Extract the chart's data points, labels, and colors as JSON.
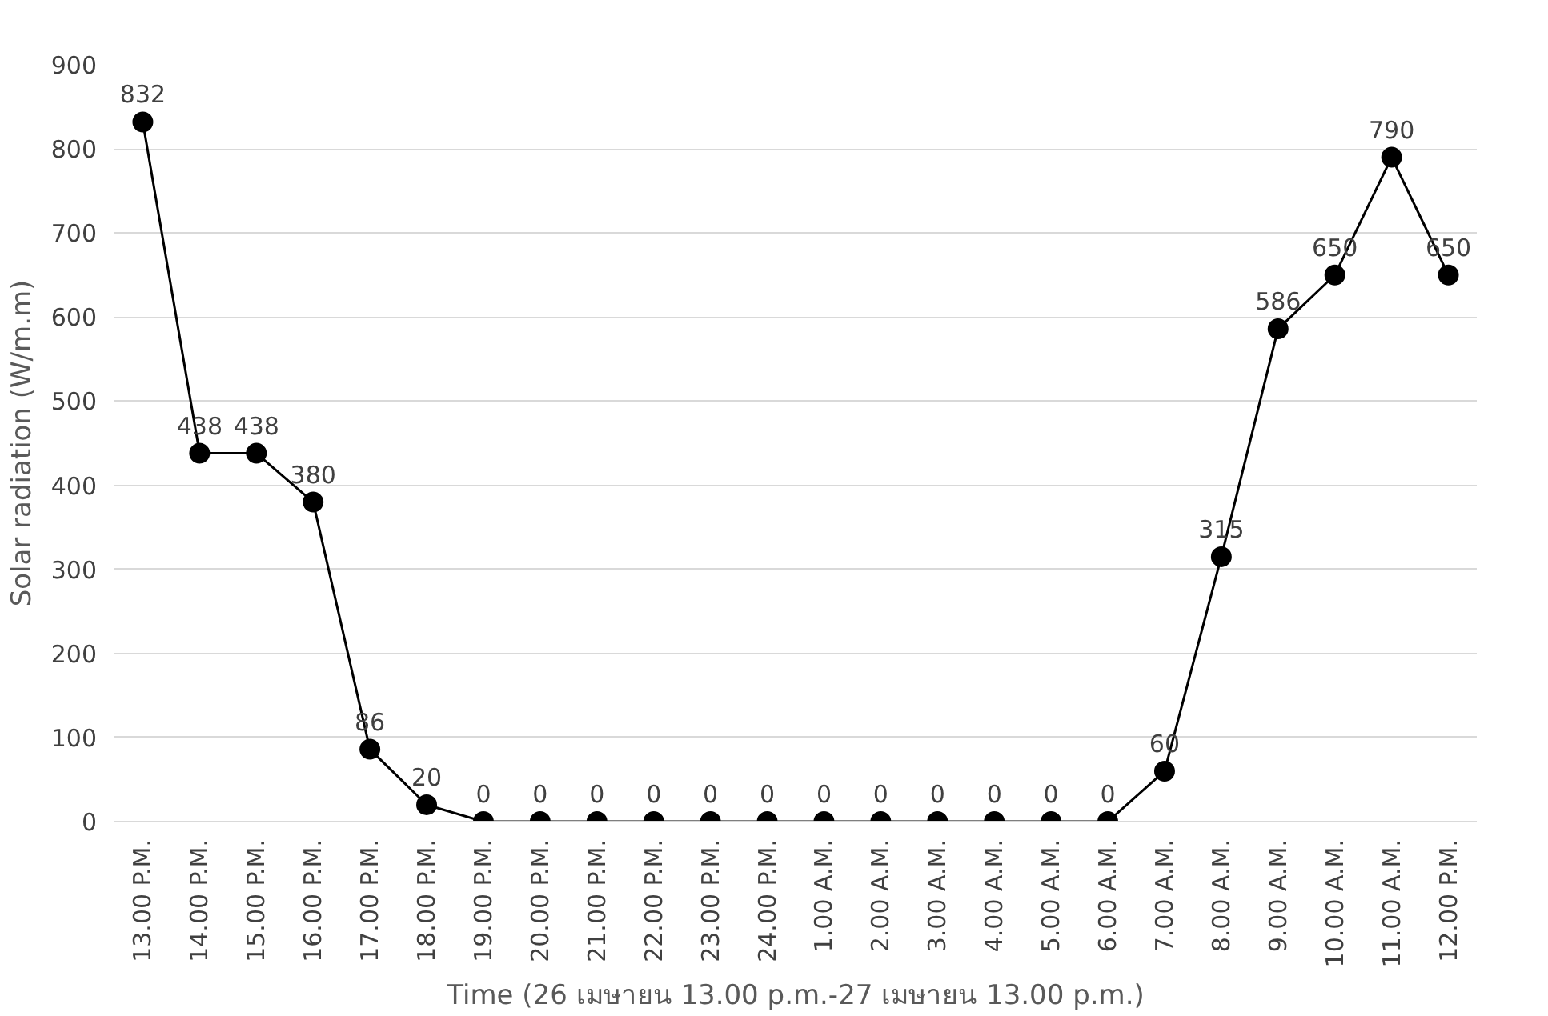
{
  "chart_data": {
    "type": "line",
    "categories": [
      "13.00 P.M.",
      "14.00 P.M.",
      "15.00 P.M.",
      "16.00 P.M.",
      "17.00 P.M.",
      "18.00 P.M.",
      "19.00 P.M.",
      "20.00 P.M.",
      "21.00 P.M.",
      "22.00 P.M.",
      "23.00 P.M.",
      "24.00 P.M.",
      "1.00 A.M.",
      "2.00 A.M.",
      "3.00 A.M.",
      "4.00 A.M.",
      "5.00 A.M.",
      "6.00 A.M.",
      "7.00 A.M.",
      "8.00 A.M.",
      "9.00 A.M.",
      "10.00 A.M.",
      "11.00 A.M.",
      "12.00 P.M."
    ],
    "series": [
      {
        "color": "#000000",
        "values": [
          832,
          438,
          438,
          380,
          86,
          20,
          0,
          0,
          0,
          0,
          0,
          0,
          0,
          0,
          0,
          0,
          0,
          0,
          60,
          315,
          586,
          650,
          790,
          650
        ]
      }
    ],
    "xlabel": "Time (26 เมษายน 13.00 p.m.-27 เมษายน 13.00 p.m.)",
    "ylabel": "Solar radiation (W/m.m)",
    "ylim": [
      0,
      900
    ],
    "yticks": [
      0,
      100,
      200,
      300,
      400,
      500,
      600,
      700,
      800,
      900
    ],
    "grid": "y",
    "marker": "circle",
    "line_style": "solid",
    "data_labels": true
  }
}
